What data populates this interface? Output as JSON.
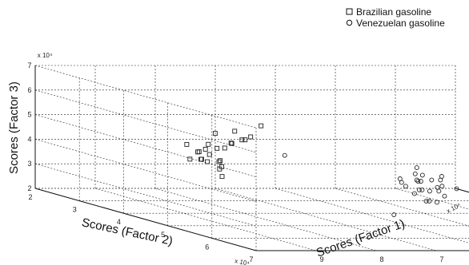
{
  "chart_data": {
    "type": "scatter",
    "title": "",
    "projection": "3d",
    "grid": true,
    "legend_position": "top-right",
    "xaxis": {
      "label": "Scores (Factor 1)",
      "range": [
        3,
        10
      ],
      "ticks": [
        3,
        4,
        5,
        6,
        7,
        8,
        9,
        10
      ],
      "tick_labels": [
        "3",
        "4",
        "5",
        "6",
        "7",
        "8",
        "9",
        ""
      ],
      "multiplier": "x 10⁴"
    },
    "yaxis": {
      "label": "Scores (Factor 2)",
      "range": [
        2,
        7
      ],
      "ticks": [
        2,
        3,
        4,
        5,
        6,
        7
      ],
      "tick_labels": [
        "2",
        "3",
        "4",
        "5",
        "6",
        "7"
      ],
      "multiplier": "x 10⁴"
    },
    "zaxis": {
      "label": "Scores (Factor 3)",
      "range": [
        2,
        7
      ],
      "ticks": [
        2,
        3,
        4,
        5,
        6,
        7
      ],
      "tick_labels": [
        "2",
        "3",
        "4",
        "5",
        "6",
        "7"
      ],
      "multiplier": "x 10⁴"
    },
    "series": [
      {
        "name": "Brazilian gasoline",
        "marker": "square",
        "points": [
          [
            9.5,
            6.0,
            6.0
          ],
          [
            9.4,
            5.7,
            6.2
          ],
          [
            9.3,
            5.8,
            5.9
          ],
          [
            9.3,
            5.5,
            5.6
          ],
          [
            9.4,
            5.3,
            5.3
          ],
          [
            9.6,
            5.4,
            5.1
          ],
          [
            9.5,
            5.0,
            5.0
          ],
          [
            9.2,
            5.1,
            4.7
          ],
          [
            9.3,
            4.8,
            4.6
          ],
          [
            9.1,
            5.0,
            4.4
          ],
          [
            9.0,
            4.8,
            4.5
          ],
          [
            8.9,
            4.4,
            4.3
          ],
          [
            8.8,
            3.8,
            4.7
          ],
          [
            8.7,
            4.0,
            4.2
          ],
          [
            8.6,
            3.6,
            4.0
          ],
          [
            8.3,
            3.4,
            4.2
          ],
          [
            7.8,
            3.3,
            4.3
          ],
          [
            8.0,
            3.2,
            4.4
          ],
          [
            7.9,
            3.0,
            4.1
          ],
          [
            7.4,
            2.9,
            4.3
          ],
          [
            7.0,
            2.8,
            4.5
          ],
          [
            6.9,
            2.9,
            5.0
          ],
          [
            8.4,
            3.9,
            5.2
          ],
          [
            8.8,
            4.6,
            3.8
          ],
          [
            8.4,
            4.0,
            3.8
          ]
        ]
      },
      {
        "name": "Venezuelan gasoline",
        "marker": "circle",
        "points": [
          [
            4.6,
            3.3,
            3.0
          ],
          [
            4.5,
            3.5,
            3.1
          ],
          [
            4.8,
            3.6,
            3.1
          ],
          [
            4.7,
            3.4,
            3.3
          ],
          [
            4.5,
            3.7,
            3.2
          ],
          [
            4.9,
            3.8,
            3.2
          ],
          [
            5.0,
            3.5,
            3.0
          ],
          [
            5.1,
            3.6,
            3.2
          ],
          [
            4.7,
            3.9,
            3.0
          ],
          [
            4.6,
            3.8,
            2.8
          ],
          [
            4.9,
            4.0,
            2.9
          ],
          [
            5.1,
            4.1,
            3.0
          ],
          [
            4.8,
            4.2,
            2.8
          ],
          [
            4.6,
            4.2,
            3.1
          ],
          [
            4.4,
            3.6,
            2.9
          ],
          [
            5.2,
            4.4,
            2.7
          ],
          [
            5.0,
            4.3,
            2.6
          ],
          [
            5.3,
            4.2,
            2.9
          ],
          [
            4.7,
            4.0,
            3.5
          ],
          [
            4.6,
            3.3,
            3.5
          ],
          [
            4.8,
            3.7,
            3.4
          ],
          [
            5.4,
            4.6,
            2.8
          ],
          [
            5.3,
            4.0,
            3.1
          ],
          [
            5.0,
            3.9,
            2.9
          ],
          [
            6.6,
            5.5,
            2.7
          ],
          [
            6.8,
            3.3,
            4.0
          ]
        ]
      }
    ]
  },
  "legend": {
    "items": [
      {
        "label": "Brazilian gasoline",
        "marker": "square"
      },
      {
        "label": "Venezuelan gasoline",
        "marker": "circle"
      }
    ]
  }
}
